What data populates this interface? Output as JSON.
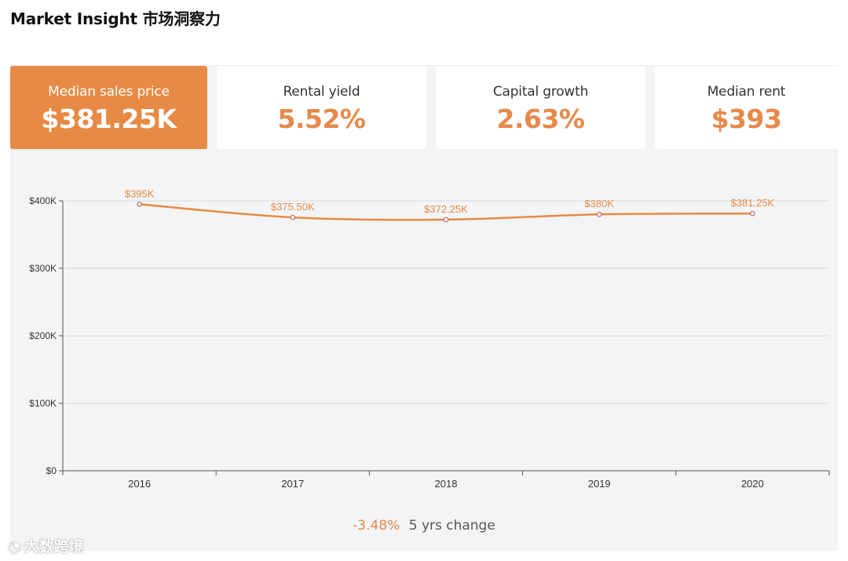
{
  "page": {
    "title": "Market Insight 市场洞察力"
  },
  "cards": [
    {
      "label": "Median sales price",
      "value": "$381.25K",
      "active": true
    },
    {
      "label": "Rental yield",
      "value": "5.52%",
      "active": false
    },
    {
      "label": "Capital growth",
      "value": "2.63%",
      "active": false
    },
    {
      "label": "Median rent",
      "value": "$393",
      "active": false
    }
  ],
  "summary": {
    "change_value": "-3.48%",
    "change_label": "5 yrs change"
  },
  "watermark": {
    "icon": "logo-icon",
    "text": "大数跨境"
  },
  "colors": {
    "accent": "#e68a45",
    "panel": "#f3f4f6",
    "grid": "#d9d9d9",
    "axis": "#555555"
  },
  "chart_data": {
    "type": "line",
    "title": "",
    "xlabel": "",
    "ylabel": "",
    "categories": [
      "2016",
      "2017",
      "2018",
      "2019",
      "2020"
    ],
    "series": [
      {
        "values": [
          395000,
          375500,
          372250,
          380000,
          381250
        ],
        "labels": [
          "$395K",
          "$375.50K",
          "$372.25K",
          "$380K",
          "$381.25K"
        ]
      }
    ],
    "ylim": [
      0,
      400000
    ],
    "yticks": [
      0,
      100000,
      200000,
      300000,
      400000
    ],
    "ytick_labels": [
      "$0",
      "$100K",
      "$200K",
      "$300K",
      "$400K"
    ],
    "grid": true,
    "legend": "none"
  }
}
